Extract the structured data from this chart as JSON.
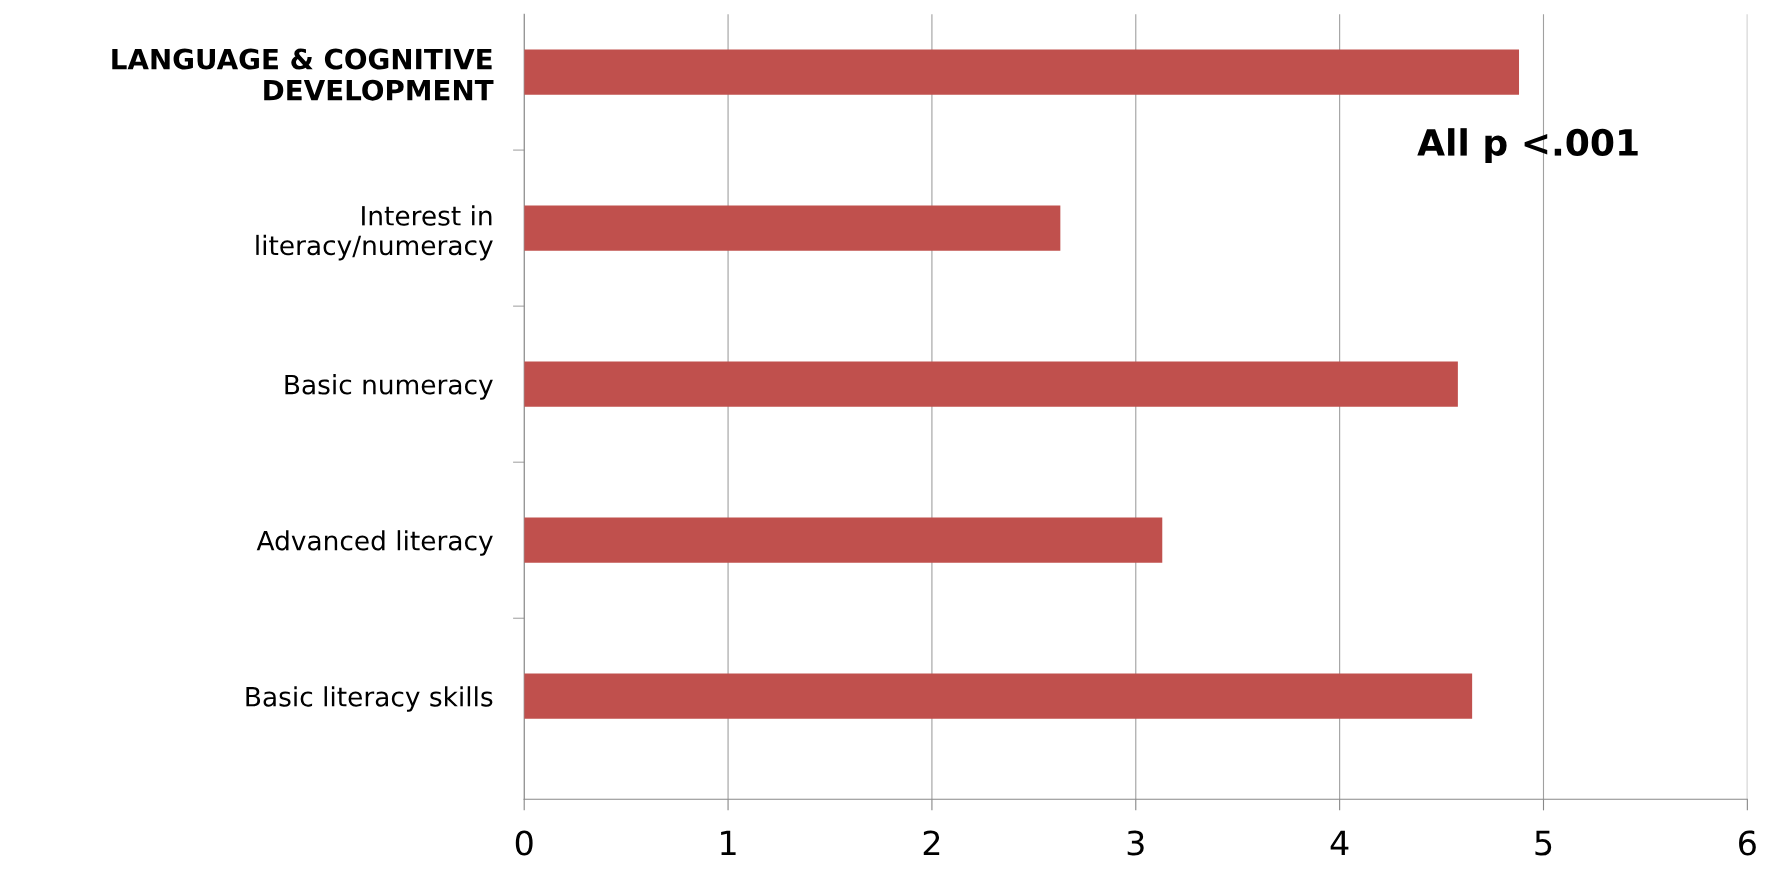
{
  "chart_data": {
    "type": "bar",
    "orientation": "horizontal",
    "categories": [
      "LANGUAGE & COGNITIVE\nDEVELOPMENT",
      "Interest in\nliteracy/numeracy",
      "Basic numeracy",
      "Advanced literacy",
      "Basic literacy skills"
    ],
    "values": [
      4.88,
      2.63,
      4.58,
      3.13,
      4.65
    ],
    "color": "#c0504d",
    "xlim": [
      0,
      6
    ],
    "xticks": [
      0,
      1,
      2,
      3,
      4,
      5,
      6
    ],
    "grid": "x",
    "legend": false,
    "annotations": [
      "All p <.001"
    ]
  }
}
